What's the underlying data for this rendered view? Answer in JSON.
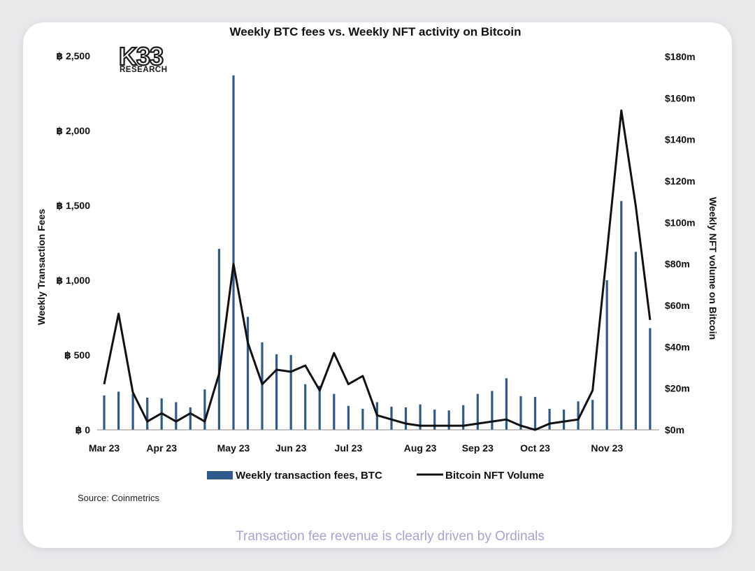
{
  "logo": {
    "mark": "K33",
    "sub": "RESEARCH"
  },
  "caption": "Transaction fee revenue is clearly driven by Ordinals",
  "source": "Source: Coinmetrics",
  "colors": {
    "bar": "#2f5b8c",
    "line": "#111111",
    "caption": "#a9a3cf"
  },
  "chart_data": {
    "type": "bar+line",
    "title": "Weekly BTC fees vs. Weekly NFT activity on Bitcoin",
    "ylabel_left": "Weekly Transaction Fees",
    "ylabel_right": "Weekly NFT volume on Bitcoin",
    "ylim_left": [
      0,
      2500
    ],
    "ylim_right": [
      0,
      180
    ],
    "yticks_left": [
      "฿ 0",
      "฿ 500",
      "฿ 1,000",
      "฿ 1,500",
      "฿ 2,000",
      "฿ 2,500"
    ],
    "yticks_right": [
      "$0m",
      "$20m",
      "$40m",
      "$60m",
      "$80m",
      "$100m",
      "$120m",
      "$140m",
      "$160m",
      "$180m"
    ],
    "xtick_labels": [
      "Mar 23",
      "Apr 23",
      "May 23",
      "Jun 23",
      "Jul 23",
      "Aug 23",
      "Sep 23",
      "Oct 23",
      "Nov 23"
    ],
    "xtick_week_index": [
      0,
      4,
      9,
      13,
      17,
      22,
      26,
      30,
      35
    ],
    "legend": {
      "bars": "Weekly transaction fees, BTC",
      "line": "Bitcoin NFT Volume"
    },
    "series": [
      {
        "name": "Weekly transaction fees, BTC",
        "axis": "left",
        "type": "bar",
        "values": [
          230,
          255,
          240,
          215,
          210,
          185,
          150,
          270,
          1210,
          2370,
          755,
          585,
          505,
          500,
          305,
          295,
          240,
          160,
          140,
          185,
          155,
          150,
          170,
          135,
          130,
          165,
          240,
          260,
          345,
          225,
          220,
          140,
          135,
          190,
          200,
          1000,
          1530,
          1190,
          680
        ]
      },
      {
        "name": "Bitcoin NFT Volume",
        "axis": "right",
        "type": "line",
        "values": [
          22,
          56,
          18,
          4,
          8,
          4,
          8,
          4,
          27,
          80,
          42,
          22,
          29,
          28,
          31,
          19,
          37,
          22,
          26,
          7,
          5,
          3,
          2,
          2,
          2,
          2,
          3,
          4,
          5,
          2,
          0,
          3,
          4,
          5,
          19,
          86,
          154,
          108,
          53
        ]
      }
    ]
  }
}
